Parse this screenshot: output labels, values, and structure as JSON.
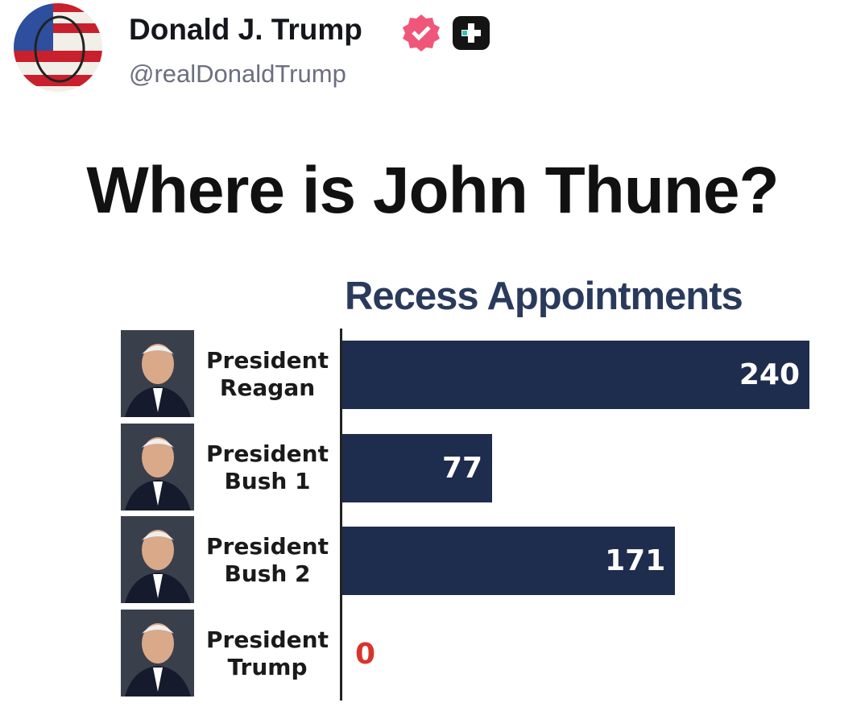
{
  "post": {
    "author": "Donald J. Trump",
    "handle": "@realDonaldTrump",
    "headline": "Where is John Thune?"
  },
  "chart_data": {
    "type": "bar",
    "orientation": "horizontal",
    "title": "Recess Appointments",
    "categories": [
      "President Reagan",
      "President Bush 1",
      "President Bush 2",
      "President Trump"
    ],
    "values": [
      240,
      77,
      171,
      0
    ],
    "color": "#1e2c4e",
    "label_colors": [
      "#ffffff",
      "#ffffff",
      "#ffffff",
      "#d9342b"
    ],
    "xlim": [
      0,
      240
    ]
  }
}
